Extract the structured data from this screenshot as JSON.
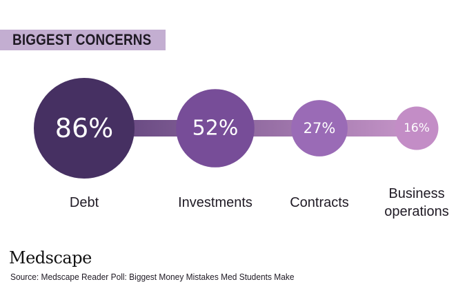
{
  "title": "BIGGEST CONCERNS",
  "brand": "Medscape",
  "source": "Source: Medscape Reader Poll: Biggest Money Mistakes Med Students Make",
  "colors": {
    "title_bar": "#c3aed1",
    "bubble_debt": "#463062",
    "bubble_investments": "#774d98",
    "bubble_contracts": "#9a6bb6",
    "bubble_business": "#c38dc6",
    "connector_dark": "#5b3f78",
    "connector_light": "#c796c9"
  },
  "chart_data": {
    "type": "bubble",
    "title": "BIGGEST CONCERNS",
    "categories": [
      [
        "Debt"
      ],
      [
        "Investments"
      ],
      [
        "Contracts"
      ],
      [
        "Business",
        "operations"
      ]
    ],
    "values": [
      86,
      52,
      27,
      16
    ],
    "value_labels": [
      "86%",
      "52%",
      "27%",
      "16%"
    ],
    "unit": "%",
    "colors": [
      "#463062",
      "#774d98",
      "#9a6bb6",
      "#c38dc6"
    ]
  }
}
